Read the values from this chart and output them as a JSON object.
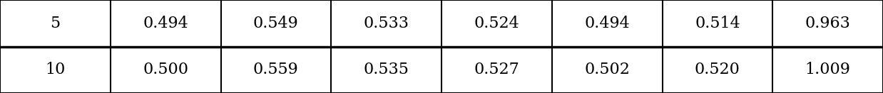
{
  "rows": [
    [
      "5",
      "0.494",
      "0.549",
      "0.533",
      "0.524",
      "0.494",
      "0.514",
      "0.963"
    ],
    [
      "10",
      "0.500",
      "0.559",
      "0.535",
      "0.527",
      "0.502",
      "0.520",
      "1.009"
    ]
  ],
  "n_cols": 8,
  "n_rows": 2,
  "border_color": "#000000",
  "text_color": "#000000",
  "bg_color": "#ffffff",
  "font_size": 16,
  "figwidth": 12.38,
  "figheight": 1.31,
  "dpi": 100
}
